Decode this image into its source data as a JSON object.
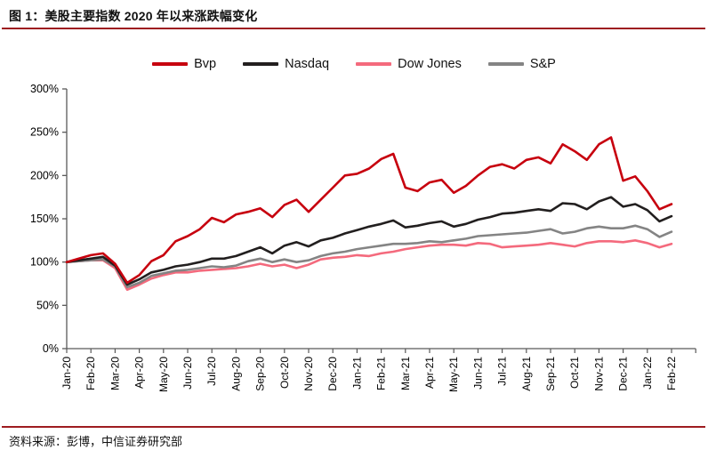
{
  "figure": {
    "title": "图 1：美股主要指数 2020 年以来涨跌幅变化",
    "source": "资料来源：彭博，中信证券研究部"
  },
  "colors": {
    "rule": "#9e1c20",
    "axis": "#595959",
    "tick_label": "#000000",
    "background": "#ffffff"
  },
  "chart_data": {
    "type": "line",
    "title": "图 1：美股主要指数 2020 年以来涨跌幅变化",
    "xlabel": "",
    "ylabel": "",
    "ylim": [
      0,
      300
    ],
    "y_tick_labels": [
      "0%",
      "50%",
      "100%",
      "150%",
      "200%",
      "250%",
      "300%"
    ],
    "y_tick_values": [
      0,
      50,
      100,
      150,
      200,
      250,
      300
    ],
    "grid": false,
    "legend_position": "top",
    "x_tick_labels": [
      "Jan-20",
      "Feb-20",
      "Mar-20",
      "Apr-20",
      "May-20",
      "Jun-20",
      "Jul-20",
      "Aug-20",
      "Sep-20",
      "Oct-20",
      "Nov-20",
      "Dec-20",
      "Jan-21",
      "Feb-21",
      "Mar-21",
      "Apr-21",
      "May-21",
      "Jun-21",
      "Jul-21",
      "Aug-21",
      "Sep-21",
      "Oct-21",
      "Nov-21",
      "Dec-21",
      "Jan-22",
      "Feb-22"
    ],
    "sample_interval_months": 0.5,
    "unit": "percent of Jan-2020 value",
    "series": [
      {
        "name": "Bvp",
        "color": "#c7000e",
        "values": [
          100,
          104,
          108,
          110,
          98,
          76,
          85,
          101,
          108,
          124,
          130,
          138,
          151,
          146,
          155,
          158,
          162,
          152,
          166,
          172,
          158,
          172,
          186,
          200,
          202,
          208,
          219,
          225,
          186,
          182,
          192,
          195,
          180,
          188,
          200,
          210,
          213,
          208,
          218,
          221,
          214,
          236,
          228,
          218,
          236,
          244,
          194,
          199,
          182,
          161,
          167
        ]
      },
      {
        "name": "Nasdaq",
        "color": "#221f1f",
        "values": [
          100,
          102,
          104,
          106,
          96,
          74,
          80,
          88,
          91,
          95,
          97,
          100,
          104,
          104,
          107,
          112,
          117,
          110,
          119,
          123,
          118,
          125,
          128,
          133,
          137,
          141,
          144,
          148,
          140,
          142,
          145,
          147,
          141,
          144,
          149,
          152,
          156,
          157,
          159,
          161,
          159,
          168,
          167,
          161,
          170,
          175,
          164,
          167,
          160,
          147,
          153
        ]
      },
      {
        "name": "Dow Jones",
        "color": "#f46a7d",
        "values": [
          100,
          101,
          102,
          102,
          93,
          68,
          74,
          81,
          85,
          88,
          88,
          90,
          91,
          92,
          93,
          95,
          98,
          95,
          97,
          93,
          97,
          103,
          105,
          106,
          108,
          107,
          110,
          112,
          115,
          117,
          119,
          120,
          120,
          119,
          122,
          121,
          117,
          118,
          119,
          120,
          122,
          120,
          118,
          122,
          124,
          124,
          123,
          125,
          122,
          117,
          121
        ]
      },
      {
        "name": "S&P",
        "color": "#848484",
        "values": [
          100,
          101,
          102,
          103,
          95,
          71,
          76,
          84,
          87,
          90,
          91,
          93,
          95,
          94,
          96,
          101,
          104,
          100,
          103,
          100,
          102,
          107,
          110,
          112,
          115,
          117,
          119,
          121,
          121,
          122,
          124,
          123,
          125,
          127,
          130,
          131,
          132,
          133,
          134,
          136,
          138,
          133,
          135,
          139,
          141,
          139,
          139,
          142,
          138,
          129,
          135
        ]
      }
    ]
  }
}
